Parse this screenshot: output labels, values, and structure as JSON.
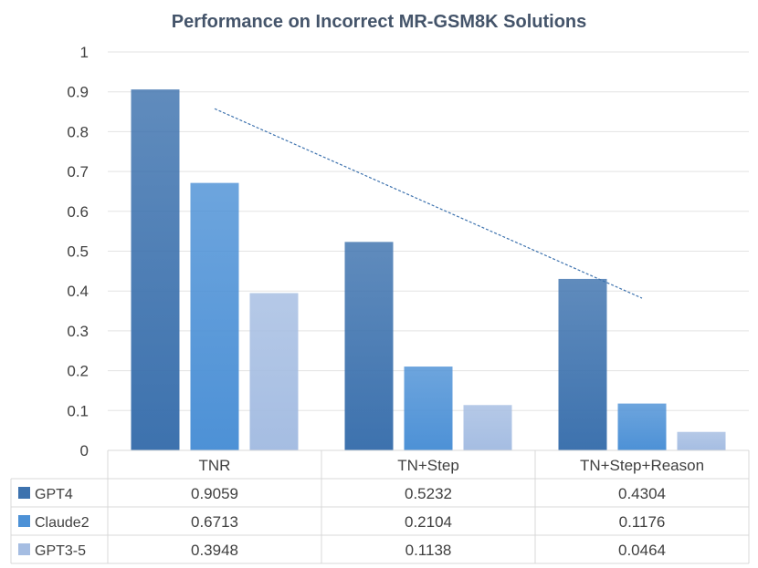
{
  "chart_data": {
    "type": "bar",
    "title": "Performance on Incorrect MR-GSM8K Solutions",
    "categories": [
      "TNR",
      "TN+Step",
      "TN+Step+Reason"
    ],
    "series": [
      {
        "name": "GPT4",
        "values": [
          0.9059,
          0.5232,
          0.4304
        ],
        "value_labels": [
          "0.9059",
          "0.5232",
          "0.4304"
        ],
        "color": "#3d72ae"
      },
      {
        "name": "Claude2",
        "values": [
          0.6713,
          0.2104,
          0.1176
        ],
        "value_labels": [
          "0.6713",
          "0.2104",
          "0.1176"
        ],
        "color": "#4d91d6"
      },
      {
        "name": "GPT3-5",
        "values": [
          0.3948,
          0.1138,
          0.0464
        ],
        "value_labels": [
          "0.3948",
          "0.1138",
          "0.0464"
        ],
        "color": "#a5bde2"
      }
    ],
    "ylim": [
      0,
      1
    ],
    "yticks": [
      "0",
      "0.1",
      "0.2",
      "0.3",
      "0.4",
      "0.5",
      "0.6",
      "0.7",
      "0.8",
      "0.9",
      "1"
    ],
    "grid": true,
    "data_table": true,
    "trendline": {
      "series": "GPT4",
      "style": "dashed",
      "color": "#3d72ae"
    }
  }
}
